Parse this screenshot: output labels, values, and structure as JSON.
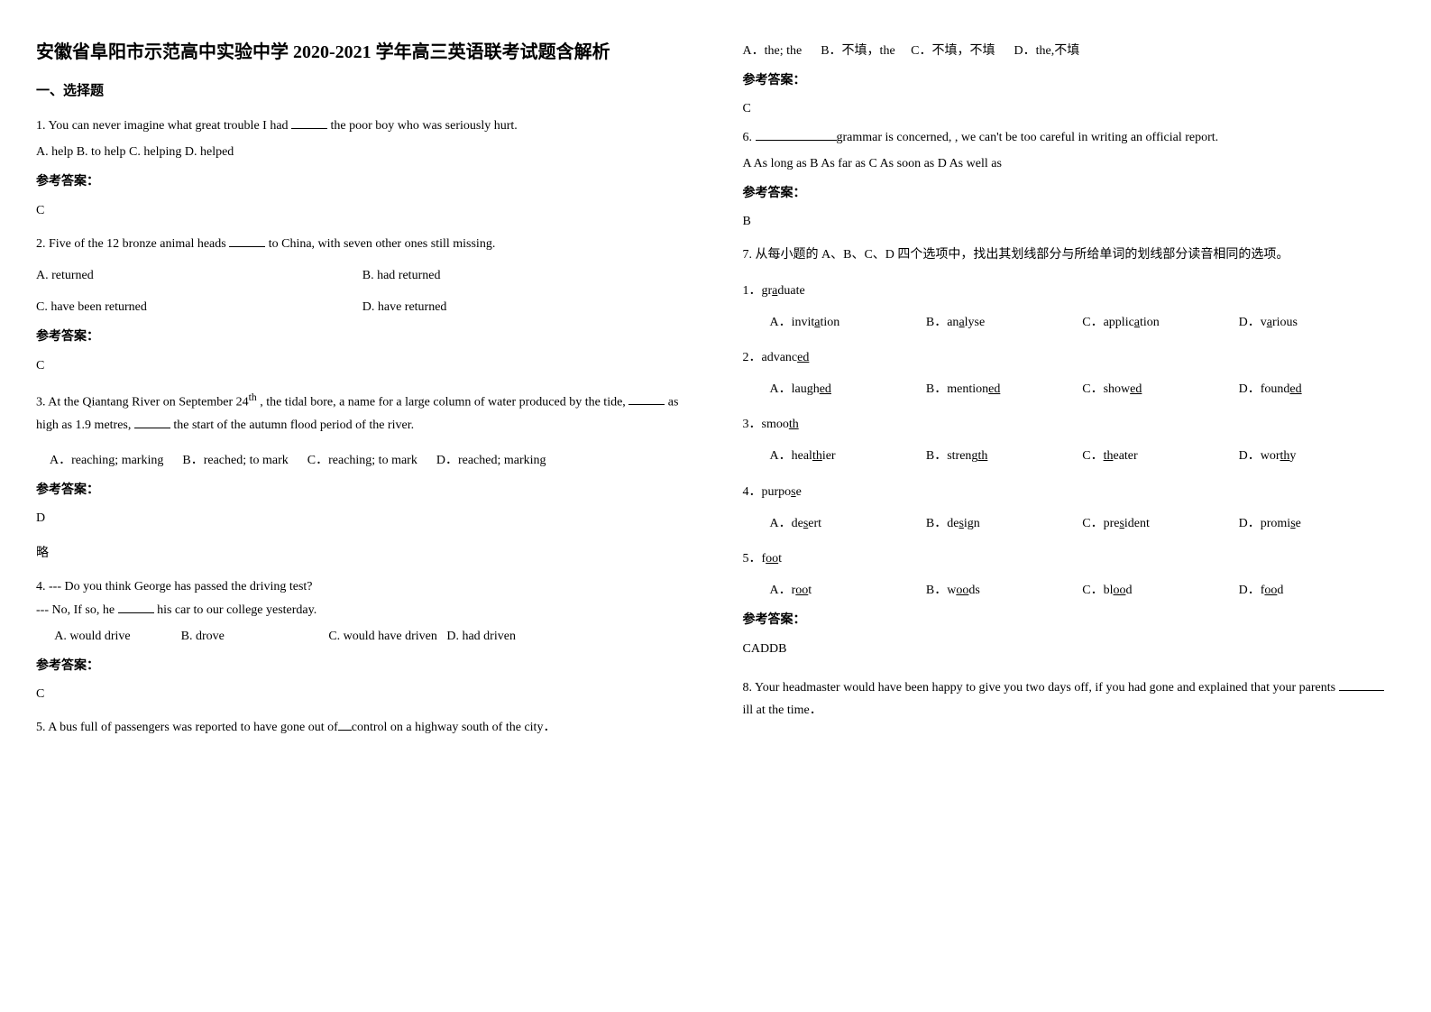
{
  "title": "安徽省阜阳市示范高中实验中学 2020-2021 学年高三英语联考试题含解析",
  "section1_heading": "一、选择题",
  "answer_label": "参考答案：",
  "omit_label": "略",
  "q1": {
    "text": "1. You can never imagine what great trouble I had ",
    "text_after": " the poor boy who was seriously hurt.",
    "opts": "A. help     B. to help     C. helping     D. helped",
    "answer": "C"
  },
  "q2": {
    "text": "2. Five of the 12 bronze animal heads ",
    "text_after": " to China, with seven other ones still missing.",
    "optA": "A. returned",
    "optB": "B. had returned",
    "optC": "C. have been returned",
    "optD": "D. have returned",
    "answer": "C"
  },
  "q3": {
    "text_p1": "3. At the Qiantang River on September 24",
    "sup": "th",
    "text_p2": " , the tidal bore, a name for a large column of water produced by the tide, ",
    "text_p3": " as high as 1.9 metres, ",
    "text_p4": " the start of the autumn flood period of the river.",
    "optA": "A．reaching; marking",
    "optB": "B．reached; to mark",
    "optC": "C．reaching; to mark",
    "optD": "D．reached; marking",
    "answer": "D"
  },
  "q4": {
    "line1": "4. --- Do you think George has passed the driving test?",
    "line2_pre": "   --- No, If so, he ",
    "line2_post": " his car to our college yesterday.",
    "opts": "      A. would drive                B. drove                                 C. would have driven   D. had driven",
    "answer": "C"
  },
  "q5": {
    "text_pre": "5. A bus full of passengers was reported to have gone out of",
    "text_post": "control on a highway  south of the city．",
    "optA": "A．the; the",
    "optB": "B．不填，the",
    "optC": "C．不填，不填",
    "optD": "D．the,不填",
    "answer": "C"
  },
  "q6": {
    "text_pre": "6. ",
    "text_post": "grammar is concerned, , we can't be too careful in writing an official report.",
    "opts": "A As long as    B As far as    C As soon as    D As well as",
    "answer": "B"
  },
  "q7": {
    "intro": "7. 从每小题的 A、B、C、D 四个选项中，找出其划线部分与所给单词的划线部分读音相同的选项。",
    "items": [
      {
        "num": "1．",
        "word_pre": "gr",
        "word_u": "a",
        "word_post": "duate",
        "optA_pre": "A．invit",
        "optA_u": "a",
        "optA_post": "tion",
        "optB_pre": "B．an",
        "optB_u": "a",
        "optB_post": "lyse",
        "optC_pre": "C．applic",
        "optC_u": "a",
        "optC_post": "tion",
        "optD_pre": "D．v",
        "optD_u": "a",
        "optD_post": "rious"
      },
      {
        "num": "2．",
        "word_pre": "advanc",
        "word_u": "ed",
        "word_post": "",
        "optA_pre": "A．laugh",
        "optA_u": "ed",
        "optA_post": "",
        "optB_pre": "B．mention",
        "optB_u": "ed",
        "optB_post": "",
        "optC_pre": "C．show",
        "optC_u": "ed",
        "optC_post": "",
        "optD_pre": "D．found",
        "optD_u": "ed",
        "optD_post": ""
      },
      {
        "num": "3．",
        "word_pre": "smoo",
        "word_u": "th",
        "word_post": "",
        "optA_pre": "A．heal",
        "optA_u": "th",
        "optA_post": "ier",
        "optB_pre": "B．streng",
        "optB_u": "th",
        "optB_post": "",
        "optC_pre": "C．",
        "optC_u": "th",
        "optC_post": "eater",
        "optD_pre": "D．wor",
        "optD_u": "th",
        "optD_post": "y"
      },
      {
        "num": "4．",
        "word_pre": "purpo",
        "word_u": "s",
        "word_post": "e",
        "optA_pre": "A．de",
        "optA_u": "s",
        "optA_post": "ert",
        "optB_pre": "B．de",
        "optB_u": "s",
        "optB_post": "ign",
        "optC_pre": "C．pre",
        "optC_u": "s",
        "optC_post": "ident",
        "optD_pre": "D．promi",
        "optD_u": "s",
        "optD_post": "e"
      },
      {
        "num": "5．",
        "word_pre": "f",
        "word_u": "oo",
        "word_post": "t",
        "optA_pre": "A．r",
        "optA_u": "oo",
        "optA_post": "t",
        "optB_pre": "B．w",
        "optB_u": "oo",
        "optB_post": "ds",
        "optC_pre": "C．bl",
        "optC_u": "oo",
        "optC_post": "d",
        "optD_pre": "D．f",
        "optD_u": "oo",
        "optD_post": "d"
      }
    ],
    "answer": "CADDB"
  },
  "q8": {
    "text_p1": "8. Your headmaster would have been happy to give you two days off, if you had gone and explained that your parents ",
    "text_p2": " ill at the time．"
  }
}
